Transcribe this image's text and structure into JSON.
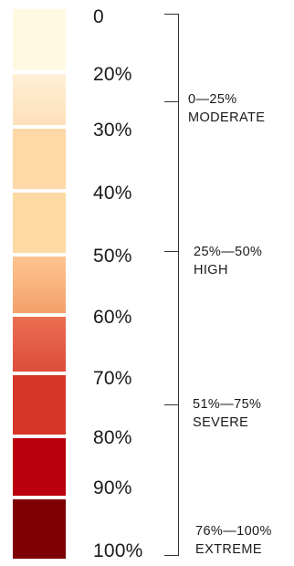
{
  "scale": {
    "stops": [
      {
        "label": "0",
        "color_top": "#fff9e1",
        "color_bottom": "#fff9e1"
      },
      {
        "label": "20%",
        "color_top": "#fff0d6",
        "color_bottom": "#fde0ba"
      },
      {
        "label": "30%",
        "color_top": "#fed8a6",
        "color_bottom": "#fed8a6"
      },
      {
        "label": "40%",
        "color_top": "#fdd9a4",
        "color_bottom": "#fdd9a4"
      },
      {
        "label": "50%",
        "color_top": "#fec590",
        "color_bottom": "#f3a06a"
      },
      {
        "label": "60%",
        "color_top": "#ea6e52",
        "color_bottom": "#dd4d3c"
      },
      {
        "label": "70%",
        "color_top": "#d6362a",
        "color_bottom": "#d6362a"
      },
      {
        "label": "80%",
        "color_top": "#b9000c",
        "color_bottom": "#b9000c"
      },
      {
        "label": "90%",
        "color_top": "#7e0004",
        "color_bottom": "#7e0004"
      },
      {
        "label": "100%",
        "color_top": "#7e0004",
        "color_bottom": "#7e0004"
      }
    ]
  },
  "categories": [
    {
      "range": "0—25%",
      "name": "MODERATE"
    },
    {
      "range": "25%—50%",
      "name": "HIGH"
    },
    {
      "range": "51%—75%",
      "name": "SEVERE"
    },
    {
      "range": "76%—100%",
      "name": "EXTREME"
    }
  ],
  "colors": {
    "bracket": "#333333",
    "text": "#1a1a1a"
  }
}
